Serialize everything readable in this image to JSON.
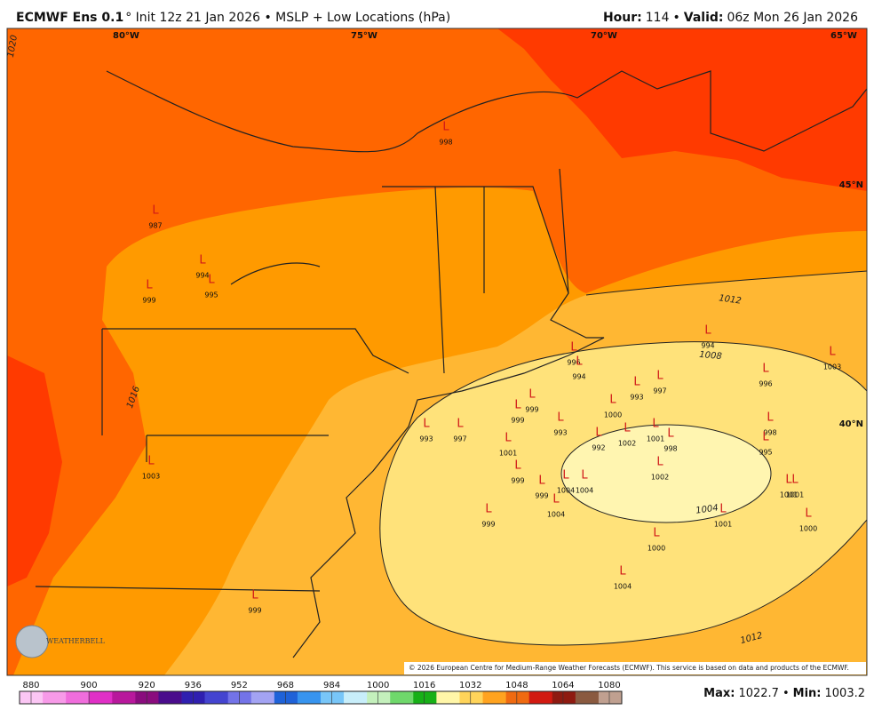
{
  "header": {
    "model": "ECMWF Ens 0.1",
    "title_rest": "° Init 12z 21 Jan 2026 • MSLP + Low Locations (hPa)",
    "hour_label": "Hour:",
    "hour_value": "114",
    "separator": "•",
    "valid_label": "Valid:",
    "valid_value": "06z Mon 26 Jan 2026"
  },
  "grid_labels": [
    "80°W",
    "75°W",
    "70°W",
    "65°W",
    "45°N",
    "40°N"
  ],
  "contour_labels": [
    1020,
    1016,
    1012,
    1008,
    1004,
    1012
  ],
  "lows": [
    {
      "symbol": "L",
      "value": "998"
    },
    {
      "symbol": "L",
      "value": "987"
    },
    {
      "symbol": "L",
      "value": "994"
    },
    {
      "symbol": "L",
      "value": "995"
    },
    {
      "symbol": "L",
      "value": "999"
    },
    {
      "symbol": "L",
      "value": "994"
    },
    {
      "symbol": "L",
      "value": "996"
    },
    {
      "symbol": "L",
      "value": "1003"
    },
    {
      "symbol": "L",
      "value": "994"
    },
    {
      "symbol": "L",
      "value": "997"
    },
    {
      "symbol": "L",
      "value": "993"
    },
    {
      "symbol": "L",
      "value": "999"
    },
    {
      "symbol": "L",
      "value": "1000"
    },
    {
      "symbol": "L",
      "value": "996"
    },
    {
      "symbol": "L",
      "value": "999"
    },
    {
      "symbol": "L",
      "value": "993"
    },
    {
      "symbol": "L",
      "value": "998"
    },
    {
      "symbol": "L",
      "value": "993"
    },
    {
      "symbol": "L",
      "value": "997"
    },
    {
      "symbol": "L",
      "value": "992"
    },
    {
      "symbol": "L",
      "value": "1002"
    },
    {
      "symbol": "L",
      "value": "1001"
    },
    {
      "symbol": "L",
      "value": "998"
    },
    {
      "symbol": "L",
      "value": "995"
    },
    {
      "symbol": "L",
      "value": "1001"
    },
    {
      "symbol": "L",
      "value": "1002"
    },
    {
      "symbol": "L",
      "value": "999"
    },
    {
      "symbol": "L",
      "value": "1004"
    },
    {
      "symbol": "L",
      "value": "1004"
    },
    {
      "symbol": "L",
      "value": "999"
    },
    {
      "symbol": "L",
      "value": "1004"
    },
    {
      "symbol": "L",
      "value": "1001"
    },
    {
      "symbol": "L",
      "value": "1001"
    },
    {
      "symbol": "L",
      "value": "1003"
    },
    {
      "symbol": "L",
      "value": "999"
    },
    {
      "symbol": "L",
      "value": "1001"
    },
    {
      "symbol": "L",
      "value": "1000"
    },
    {
      "symbol": "L",
      "value": "1000"
    },
    {
      "symbol": "L",
      "value": "1004"
    },
    {
      "symbol": "L",
      "value": "999"
    }
  ],
  "colorbar": {
    "ticks": [
      880,
      900,
      920,
      936,
      952,
      968,
      984,
      1000,
      1016,
      1032,
      1048,
      1064,
      1080
    ],
    "colors": [
      "#fbc6f4",
      "#f79ae8",
      "#f06ddc",
      "#e02fc6",
      "#b8189c",
      "#8a0c7e",
      "#4a0c8c",
      "#2f1fb0",
      "#4444d0",
      "#7373e8",
      "#a3a3f3",
      "#1f62d8",
      "#3794ef",
      "#78c6f8",
      "#c8eefa",
      "#c4f0bc",
      "#6fd86b",
      "#17b017",
      "#fff6a8",
      "#ffd45a",
      "#ffa31f",
      "#f06a10",
      "#d21a10",
      "#8e1a10",
      "#8a5a40",
      "#c0a090"
    ]
  },
  "footer": {
    "max_label": "Max:",
    "max_value": "1022.7",
    "separator": "•",
    "min_label": "Min:",
    "min_value": "1003.2",
    "copyright": "© 2026 European Centre for Medium-Range Weather Forecasts (ECMWF). This service is based on data and products of the ECMWF.",
    "logo": "WEATHERBELL"
  }
}
